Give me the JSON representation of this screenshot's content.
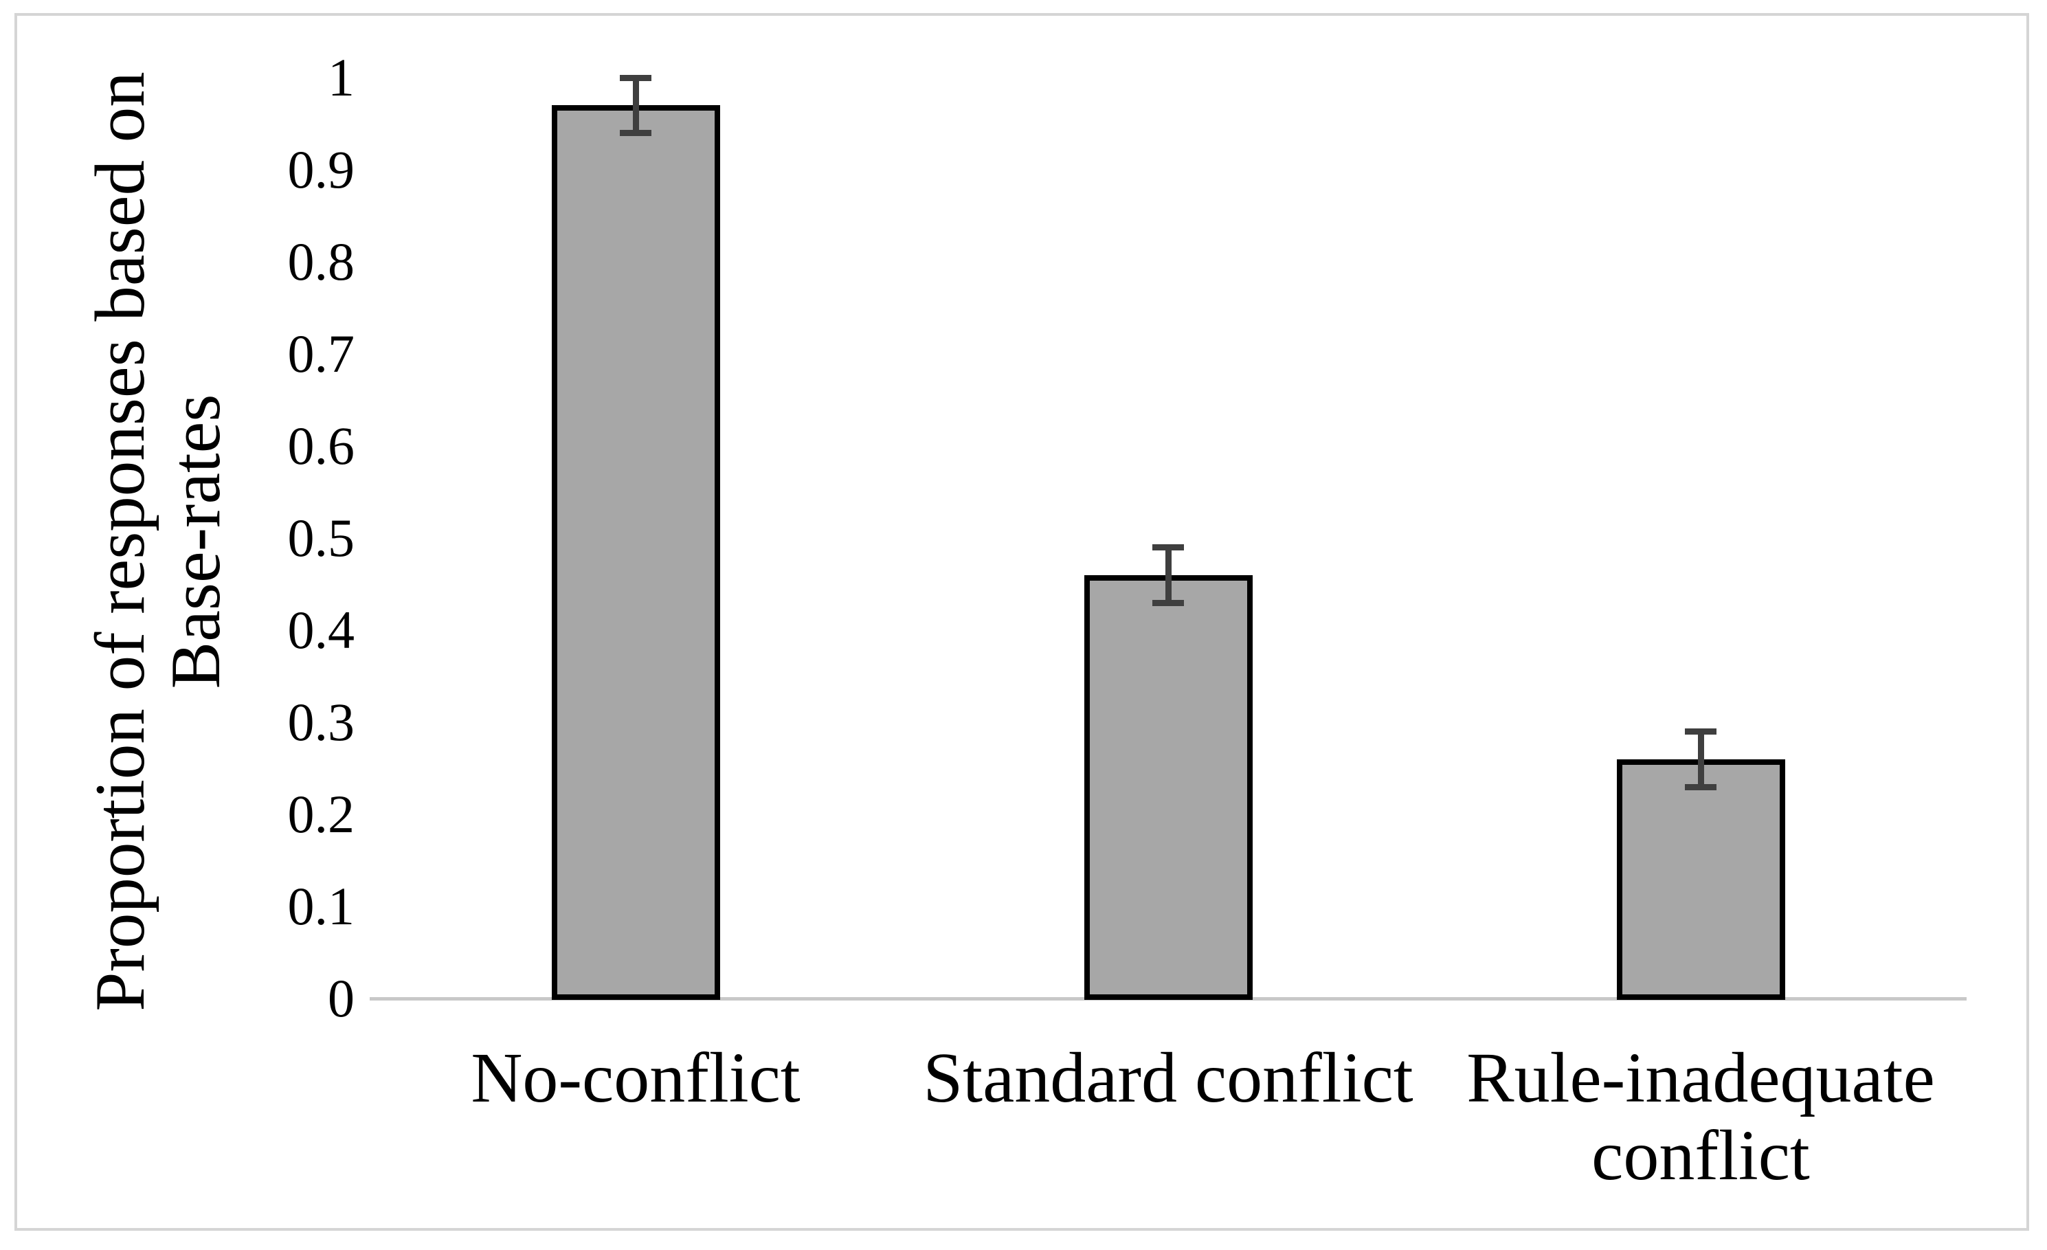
{
  "figure": {
    "background_color": "#ffffff",
    "frame_border_color": "#d5d5d5"
  },
  "chart_data": {
    "type": "bar",
    "title": "",
    "xlabel": "",
    "ylabel": "Proportion of responses based on Base-rates",
    "ylabel_lines": [
      "Proportion of responses based on",
      "Base-rates"
    ],
    "categories": [
      "No-conflict",
      "Standard conflict",
      "Rule-inadequate conflict"
    ],
    "category_lines": [
      [
        "No-conflict"
      ],
      [
        "Standard conflict"
      ],
      [
        "Rule-inadequate",
        "conflict"
      ]
    ],
    "values": [
      0.97,
      0.46,
      0.26
    ],
    "error_bars": [
      0.03,
      0.03,
      0.03
    ],
    "yticks": [
      0,
      0.1,
      0.2,
      0.3,
      0.4,
      0.5,
      0.6,
      0.7,
      0.8,
      0.9,
      1
    ],
    "ytick_labels": [
      "0",
      "0.1",
      "0.2",
      "0.3",
      "0.4",
      "0.5",
      "0.6",
      "0.7",
      "0.8",
      "0.9",
      "1"
    ],
    "ylim": [
      0,
      1
    ],
    "grid": false,
    "legend_position": "none",
    "bar_fill_color": "#a7a7a7",
    "bar_border_color": "#000000",
    "error_bar_color": "#3f3f3f",
    "axis_line_color": "#c8c8c8"
  }
}
